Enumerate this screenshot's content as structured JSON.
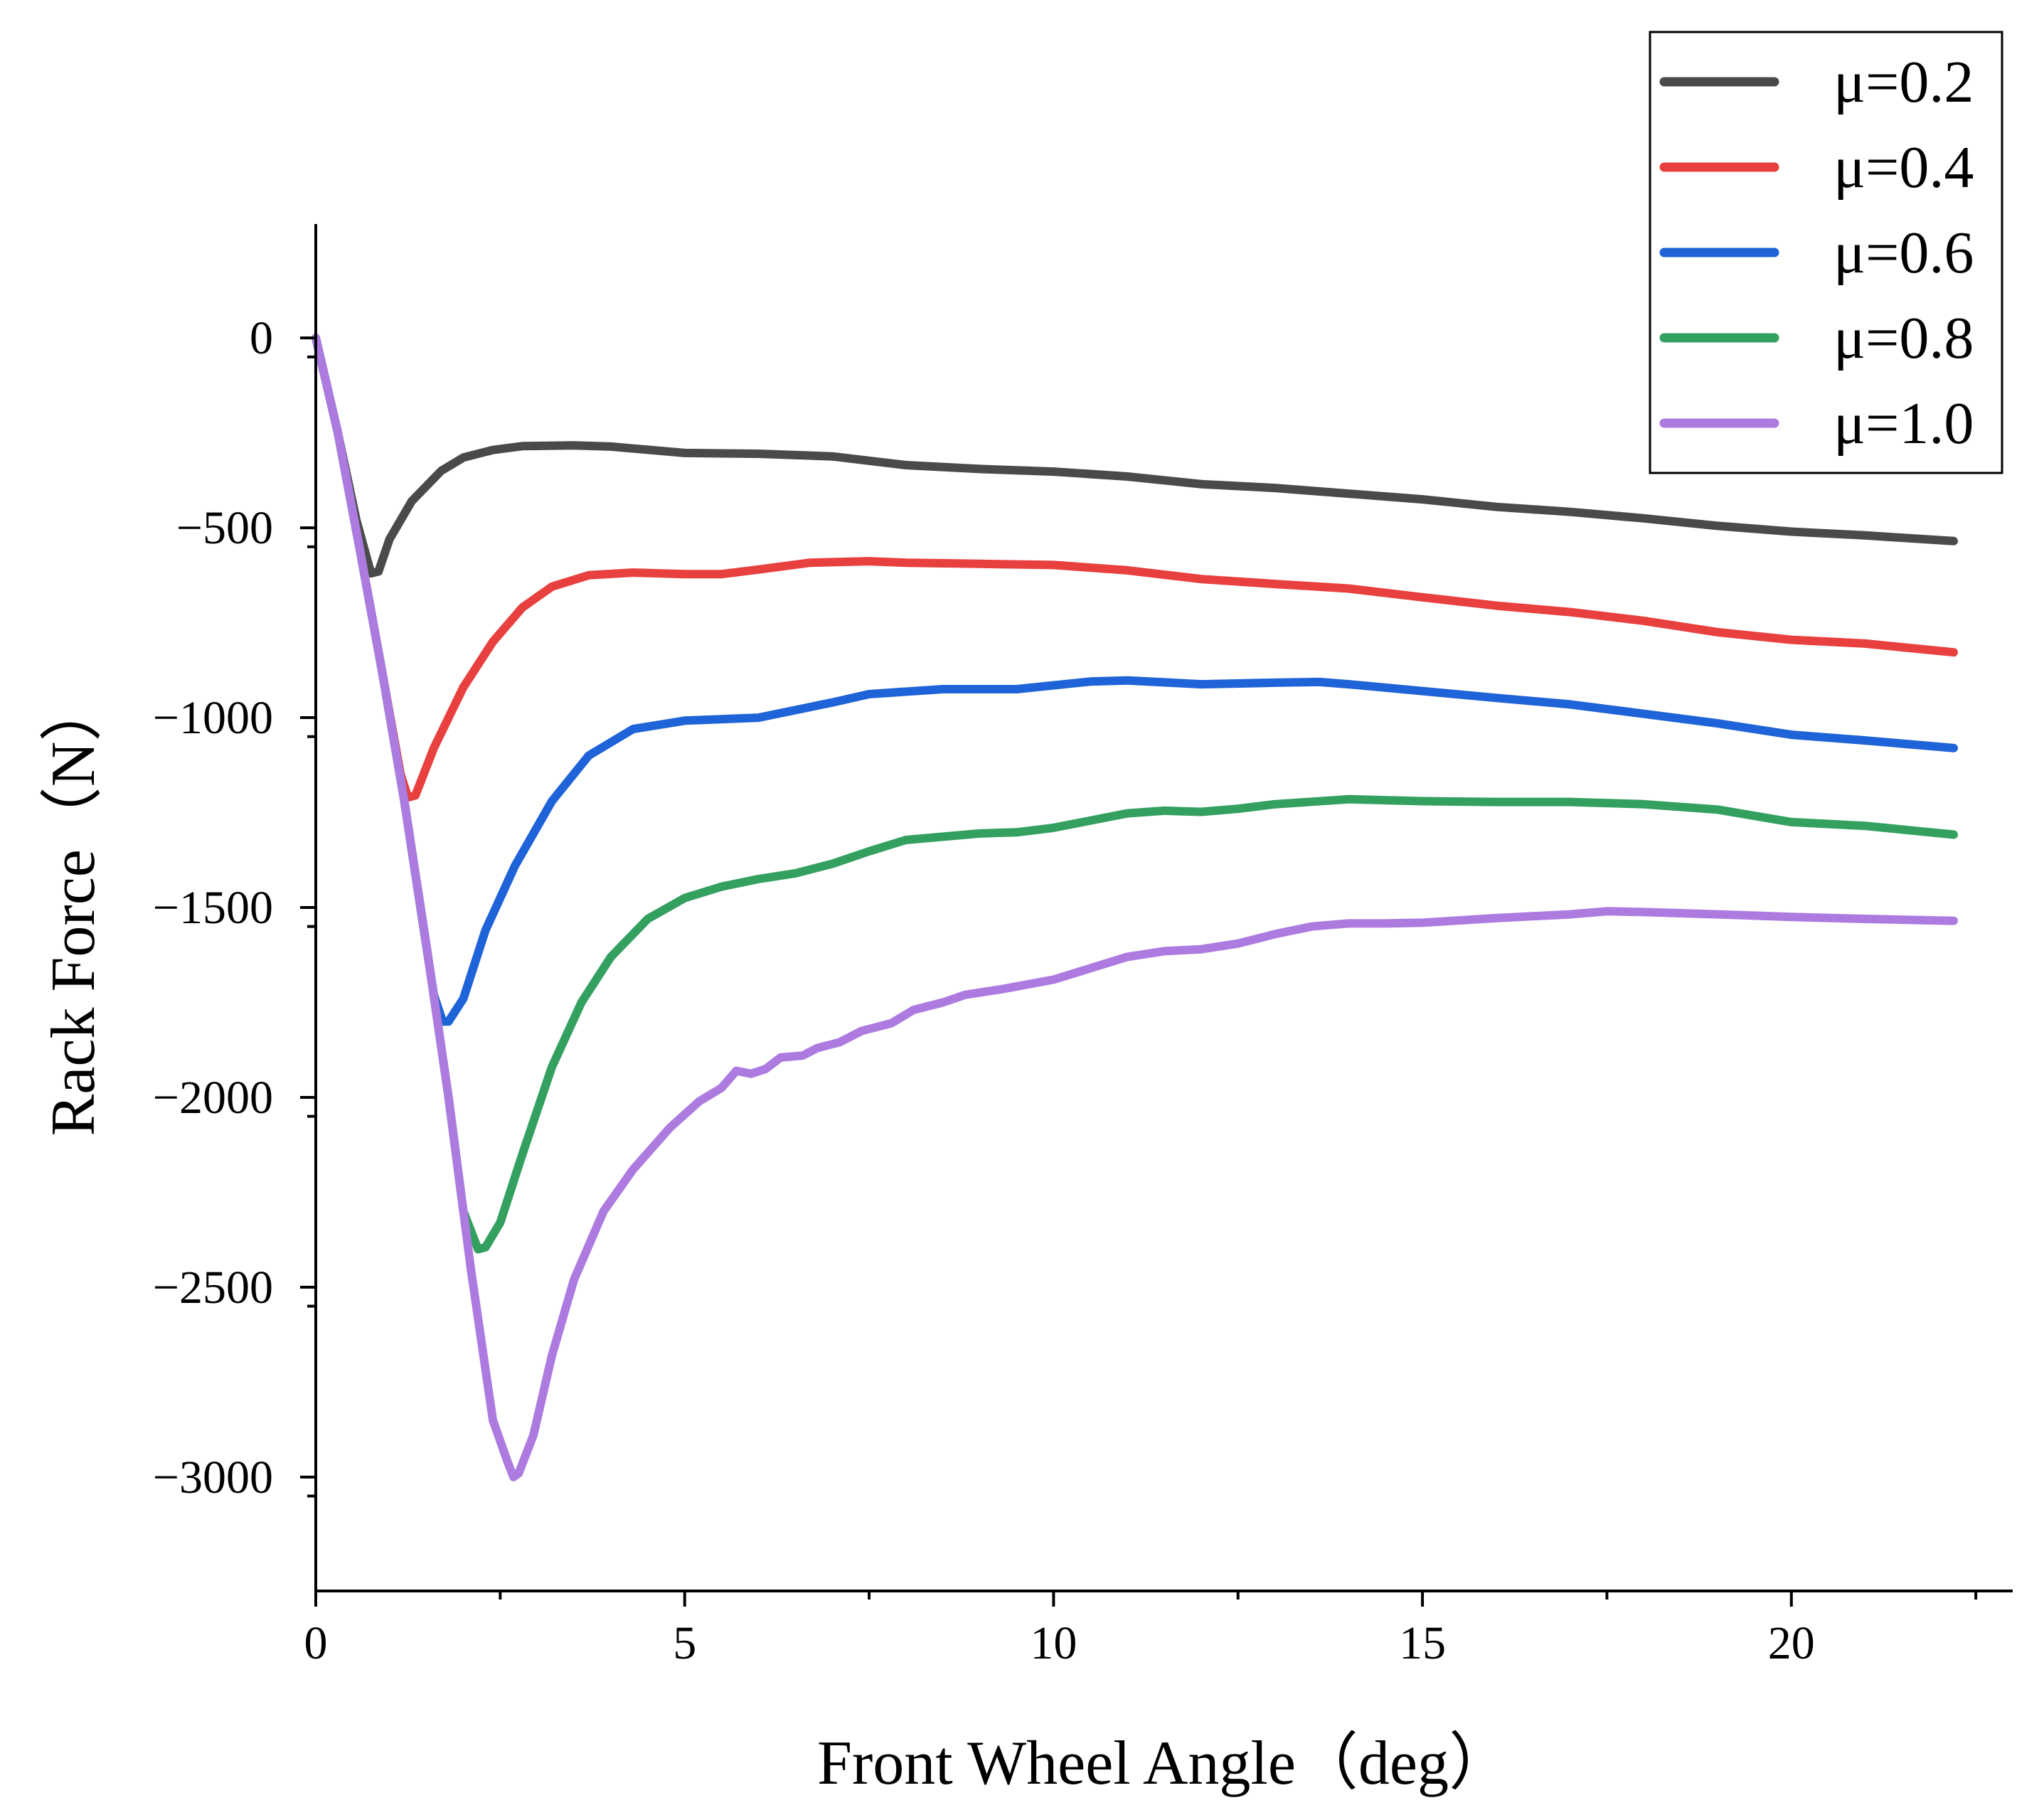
{
  "chart_data": {
    "type": "line",
    "title": "",
    "xlabel": "Front Wheel Angle（deg）",
    "ylabel": "Rack Force（N）",
    "xlim": [
      0,
      23
    ],
    "ylim": [
      -3300,
      300
    ],
    "xticks": [
      0,
      5,
      10,
      15,
      20
    ],
    "yticks": [
      0,
      -500,
      -1000,
      -1500,
      -2000,
      -2500,
      -3000
    ],
    "x_minor_step": 2.5,
    "y_minor_step": 250,
    "legend_position": "top-right",
    "series": [
      {
        "name": "μ=0.2",
        "color": "#4a4a4a",
        "points": [
          [
            0,
            0
          ],
          [
            0.3,
            -250
          ],
          [
            0.55,
            -480
          ],
          [
            0.75,
            -620
          ],
          [
            0.85,
            -615
          ],
          [
            1.0,
            -530
          ],
          [
            1.3,
            -430
          ],
          [
            1.7,
            -350
          ],
          [
            2.0,
            -315
          ],
          [
            2.4,
            -295
          ],
          [
            2.8,
            -285
          ],
          [
            3.5,
            -283
          ],
          [
            4.0,
            -286
          ],
          [
            5.0,
            -303
          ],
          [
            6.0,
            -305
          ],
          [
            7.0,
            -312
          ],
          [
            8.0,
            -335
          ],
          [
            9.0,
            -345
          ],
          [
            10.0,
            -352
          ],
          [
            11.0,
            -365
          ],
          [
            12.0,
            -385
          ],
          [
            13.0,
            -395
          ],
          [
            14.0,
            -410
          ],
          [
            15.0,
            -425
          ],
          [
            16.0,
            -445
          ],
          [
            17.0,
            -458
          ],
          [
            18.0,
            -475
          ],
          [
            19.0,
            -495
          ],
          [
            20.0,
            -510
          ],
          [
            21.0,
            -520
          ],
          [
            22.2,
            -535
          ]
        ]
      },
      {
        "name": "μ=0.4",
        "color": "#e8403f",
        "points": [
          [
            0,
            0
          ],
          [
            0.3,
            -250
          ],
          [
            0.6,
            -560
          ],
          [
            0.9,
            -880
          ],
          [
            1.15,
            -1150
          ],
          [
            1.25,
            -1210
          ],
          [
            1.35,
            -1205
          ],
          [
            1.6,
            -1080
          ],
          [
            2.0,
            -920
          ],
          [
            2.4,
            -800
          ],
          [
            2.8,
            -710
          ],
          [
            3.2,
            -655
          ],
          [
            3.7,
            -625
          ],
          [
            4.3,
            -618
          ],
          [
            5.0,
            -622
          ],
          [
            5.5,
            -622
          ],
          [
            6.0,
            -610
          ],
          [
            6.7,
            -592
          ],
          [
            7.5,
            -588
          ],
          [
            8.0,
            -592
          ],
          [
            9.0,
            -595
          ],
          [
            10.0,
            -598
          ],
          [
            11.0,
            -612
          ],
          [
            12.0,
            -635
          ],
          [
            13.0,
            -648
          ],
          [
            14.0,
            -660
          ],
          [
            15.0,
            -683
          ],
          [
            16.0,
            -705
          ],
          [
            17.0,
            -722
          ],
          [
            18.0,
            -745
          ],
          [
            19.0,
            -775
          ],
          [
            20.0,
            -795
          ],
          [
            21.0,
            -805
          ],
          [
            22.2,
            -828
          ]
        ]
      },
      {
        "name": "μ=0.6",
        "color": "#1f63d8",
        "points": [
          [
            0,
            0
          ],
          [
            0.3,
            -250
          ],
          [
            0.6,
            -560
          ],
          [
            0.9,
            -880
          ],
          [
            1.2,
            -1220
          ],
          [
            1.45,
            -1540
          ],
          [
            1.6,
            -1730
          ],
          [
            1.72,
            -1800
          ],
          [
            1.8,
            -1800
          ],
          [
            2.0,
            -1740
          ],
          [
            2.3,
            -1560
          ],
          [
            2.7,
            -1390
          ],
          [
            3.2,
            -1220
          ],
          [
            3.7,
            -1100
          ],
          [
            4.3,
            -1030
          ],
          [
            5.0,
            -1008
          ],
          [
            6.0,
            -1000
          ],
          [
            7.0,
            -960
          ],
          [
            7.5,
            -938
          ],
          [
            8.5,
            -925
          ],
          [
            9.5,
            -925
          ],
          [
            10.5,
            -905
          ],
          [
            11.0,
            -902
          ],
          [
            12.0,
            -912
          ],
          [
            13.0,
            -908
          ],
          [
            13.6,
            -906
          ],
          [
            14.0,
            -912
          ],
          [
            15.0,
            -930
          ],
          [
            16.0,
            -948
          ],
          [
            17.0,
            -965
          ],
          [
            18.0,
            -990
          ],
          [
            19.0,
            -1015
          ],
          [
            20.0,
            -1045
          ],
          [
            21.0,
            -1060
          ],
          [
            22.2,
            -1080
          ]
        ]
      },
      {
        "name": "μ=0.8",
        "color": "#34a060",
        "points": [
          [
            0,
            0
          ],
          [
            0.3,
            -250
          ],
          [
            0.6,
            -560
          ],
          [
            0.9,
            -880
          ],
          [
            1.2,
            -1220
          ],
          [
            1.5,
            -1600
          ],
          [
            1.8,
            -2000
          ],
          [
            2.0,
            -2300
          ],
          [
            2.2,
            -2400
          ],
          [
            2.3,
            -2395
          ],
          [
            2.5,
            -2330
          ],
          [
            2.8,
            -2150
          ],
          [
            3.2,
            -1920
          ],
          [
            3.6,
            -1750
          ],
          [
            4.0,
            -1630
          ],
          [
            4.5,
            -1530
          ],
          [
            5.0,
            -1475
          ],
          [
            5.5,
            -1445
          ],
          [
            6.0,
            -1425
          ],
          [
            6.5,
            -1410
          ],
          [
            7.0,
            -1385
          ],
          [
            7.5,
            -1352
          ],
          [
            8.0,
            -1322
          ],
          [
            9.0,
            -1305
          ],
          [
            9.5,
            -1302
          ],
          [
            10.0,
            -1290
          ],
          [
            11.0,
            -1252
          ],
          [
            11.5,
            -1245
          ],
          [
            12.0,
            -1248
          ],
          [
            12.5,
            -1240
          ],
          [
            13.0,
            -1228
          ],
          [
            14.0,
            -1215
          ],
          [
            15.0,
            -1220
          ],
          [
            16.0,
            -1222
          ],
          [
            17.0,
            -1222
          ],
          [
            18.0,
            -1228
          ],
          [
            19.0,
            -1242
          ],
          [
            20.0,
            -1275
          ],
          [
            21.0,
            -1285
          ],
          [
            22.2,
            -1308
          ]
        ]
      },
      {
        "name": "μ=1.0",
        "color": "#ad7be0",
        "points": [
          [
            0,
            0
          ],
          [
            0.3,
            -250
          ],
          [
            0.6,
            -560
          ],
          [
            0.9,
            -880
          ],
          [
            1.2,
            -1220
          ],
          [
            1.5,
            -1600
          ],
          [
            1.8,
            -2000
          ],
          [
            2.1,
            -2450
          ],
          [
            2.4,
            -2850
          ],
          [
            2.6,
            -2960
          ],
          [
            2.68,
            -3000
          ],
          [
            2.75,
            -2990
          ],
          [
            2.95,
            -2890
          ],
          [
            3.2,
            -2680
          ],
          [
            3.5,
            -2480
          ],
          [
            3.9,
            -2300
          ],
          [
            4.3,
            -2190
          ],
          [
            4.8,
            -2080
          ],
          [
            5.2,
            -2010
          ],
          [
            5.5,
            -1975
          ],
          [
            5.7,
            -1930
          ],
          [
            5.9,
            -1938
          ],
          [
            6.1,
            -1925
          ],
          [
            6.3,
            -1895
          ],
          [
            6.6,
            -1890
          ],
          [
            6.8,
            -1870
          ],
          [
            7.1,
            -1855
          ],
          [
            7.4,
            -1825
          ],
          [
            7.8,
            -1805
          ],
          [
            8.1,
            -1770
          ],
          [
            8.5,
            -1750
          ],
          [
            8.8,
            -1730
          ],
          [
            9.3,
            -1715
          ],
          [
            10.0,
            -1690
          ],
          [
            10.5,
            -1660
          ],
          [
            11.0,
            -1630
          ],
          [
            11.5,
            -1615
          ],
          [
            12.0,
            -1610
          ],
          [
            12.5,
            -1595
          ],
          [
            13.0,
            -1570
          ],
          [
            13.5,
            -1550
          ],
          [
            14.0,
            -1542
          ],
          [
            14.5,
            -1542
          ],
          [
            15.0,
            -1540
          ],
          [
            16.0,
            -1528
          ],
          [
            17.0,
            -1518
          ],
          [
            17.5,
            -1510
          ],
          [
            18.0,
            -1512
          ],
          [
            19.0,
            -1518
          ],
          [
            20.0,
            -1525
          ],
          [
            21.0,
            -1530
          ],
          [
            22.2,
            -1535
          ]
        ]
      }
    ]
  }
}
